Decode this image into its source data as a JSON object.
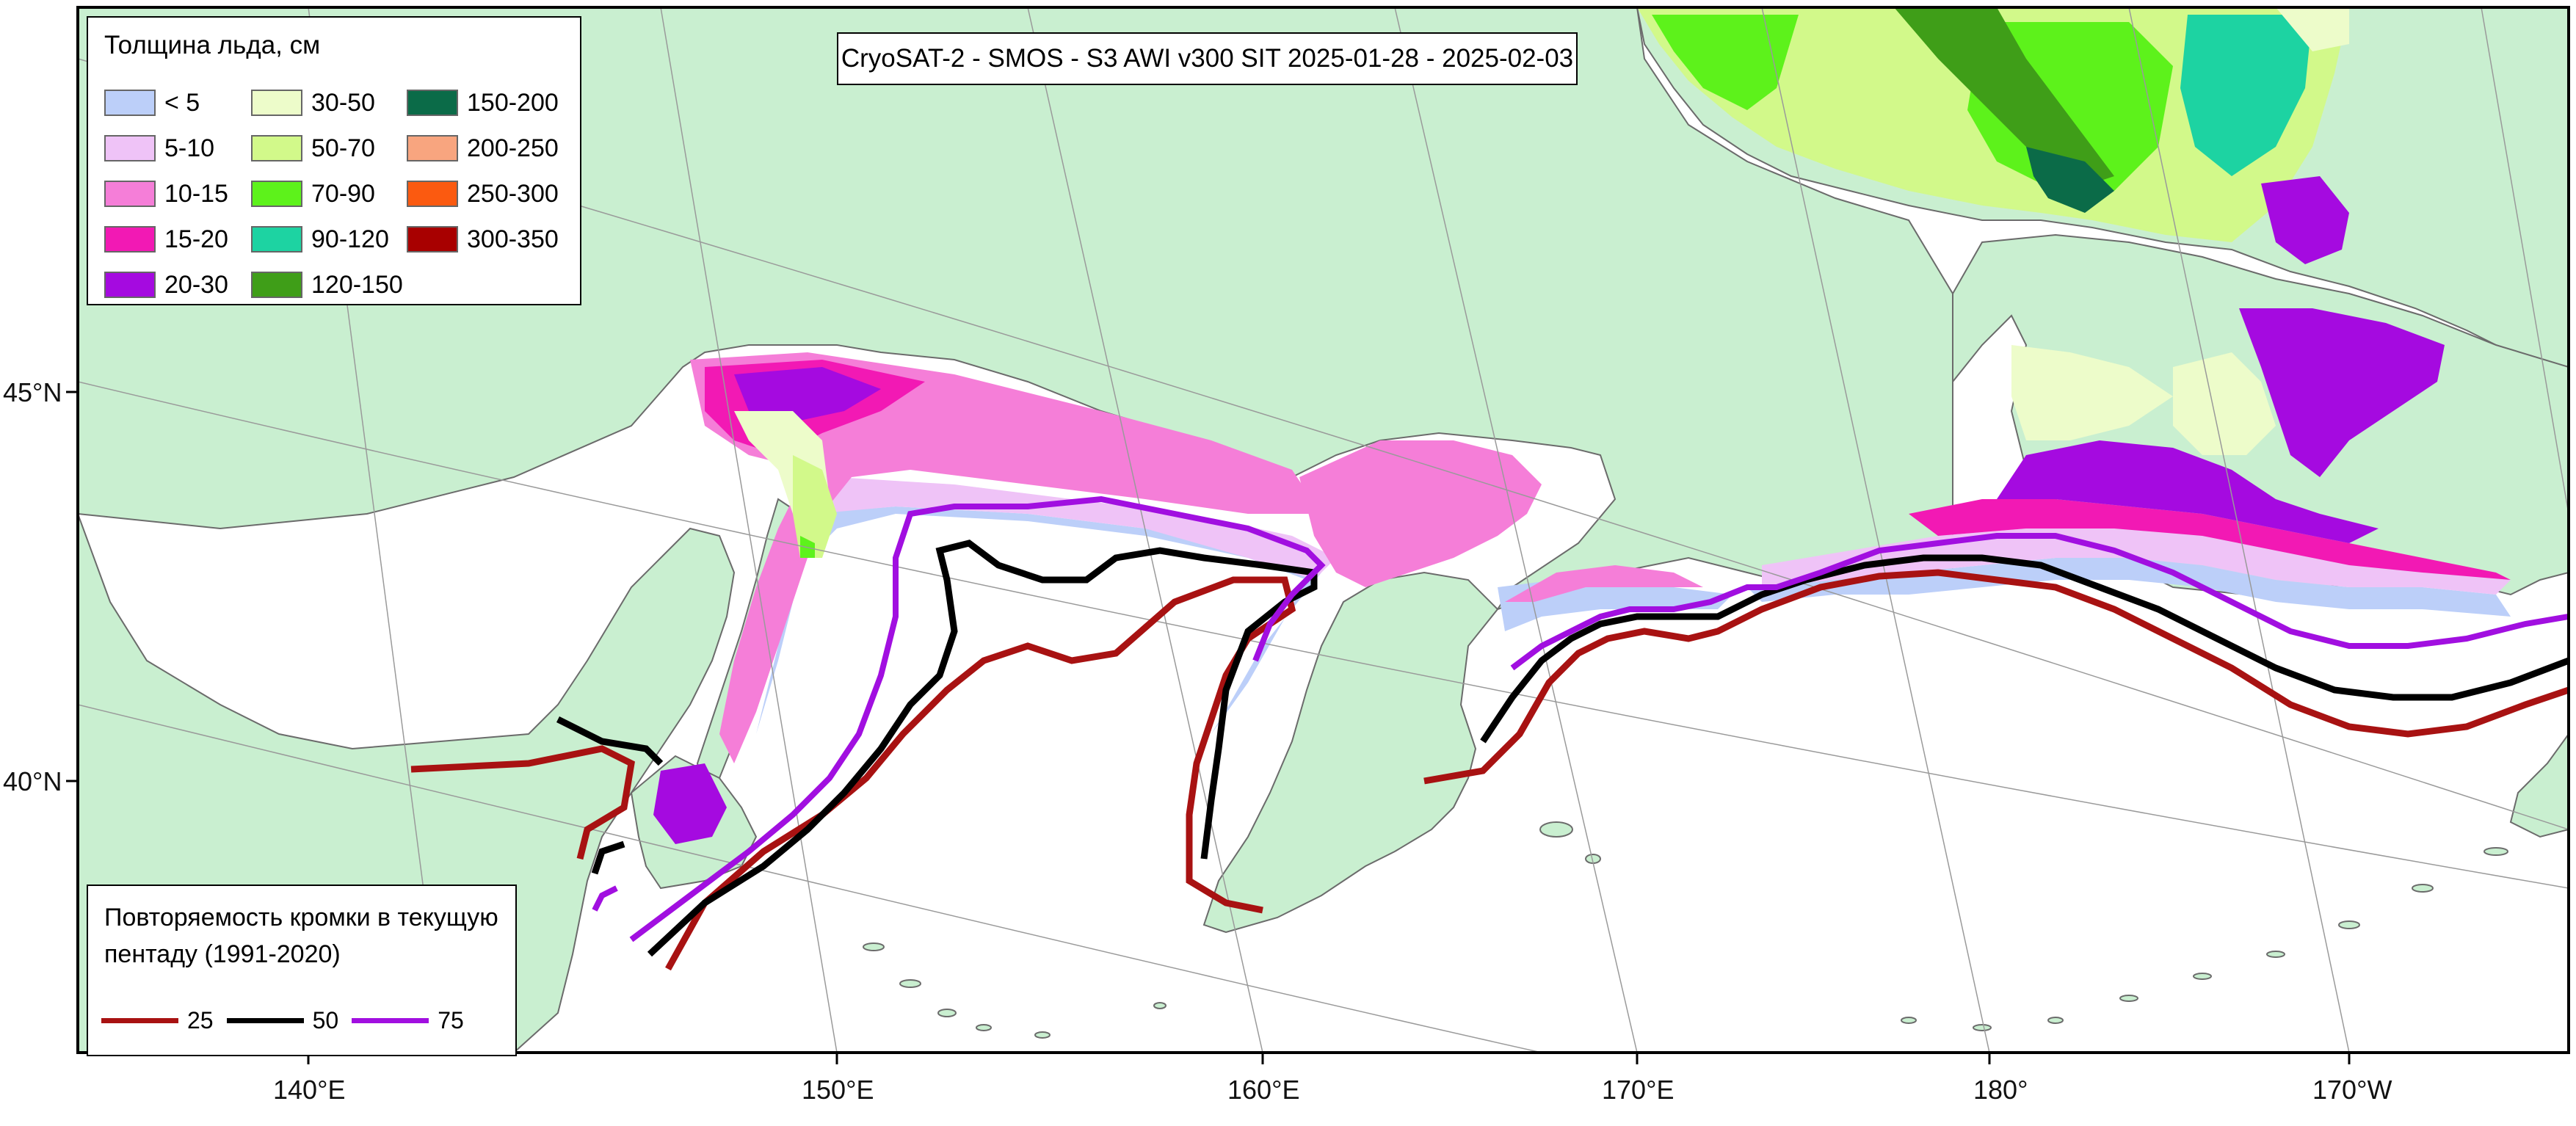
{
  "title": "CryoSAT-2 - SMOS - S3 AWI v300 SIT 2025-01-28 - 2025-02-03",
  "thickness_legend": {
    "title": "Толщина льда, см",
    "items": [
      {
        "label": "< 5",
        "color": "#bccff9"
      },
      {
        "label": "5-10",
        "color": "#efc3f7"
      },
      {
        "label": "10-15",
        "color": "#f57ed8"
      },
      {
        "label": "15-20",
        "color": "#f219b4"
      },
      {
        "label": "20-30",
        "color": "#a50ae0"
      },
      {
        "label": "30-50",
        "color": "#edfcca"
      },
      {
        "label": "50-70",
        "color": "#d2f98a"
      },
      {
        "label": "70-90",
        "color": "#5df21b"
      },
      {
        "label": "90-120",
        "color": "#1dd3a2"
      },
      {
        "label": "120-150",
        "color": "#3f9e18"
      },
      {
        "label": "150-200",
        "color": "#0b6b48"
      },
      {
        "label": "200-250",
        "color": "#f8a57f"
      },
      {
        "label": "250-300",
        "color": "#fb5a10"
      },
      {
        "label": "300-350",
        "color": "#a80000"
      }
    ]
  },
  "frequency_legend": {
    "title": "Повторяемость кромки в текущую пентаду (1991-2020)",
    "items": [
      {
        "label": "25",
        "color": "#a81212"
      },
      {
        "label": "50",
        "color": "#000000"
      },
      {
        "label": "75",
        "color": "#a10fe0"
      }
    ]
  },
  "axes": {
    "lat_labels": [
      "45°N",
      "40°N"
    ],
    "lon_labels": [
      "140°E",
      "150°E",
      "160°E",
      "170°E",
      "180°",
      "170°W"
    ]
  },
  "colors": {
    "land": "#c9efd0",
    "ocean": "#ffffff",
    "graticule": "#9a9a9a",
    "frame": "#000000"
  }
}
